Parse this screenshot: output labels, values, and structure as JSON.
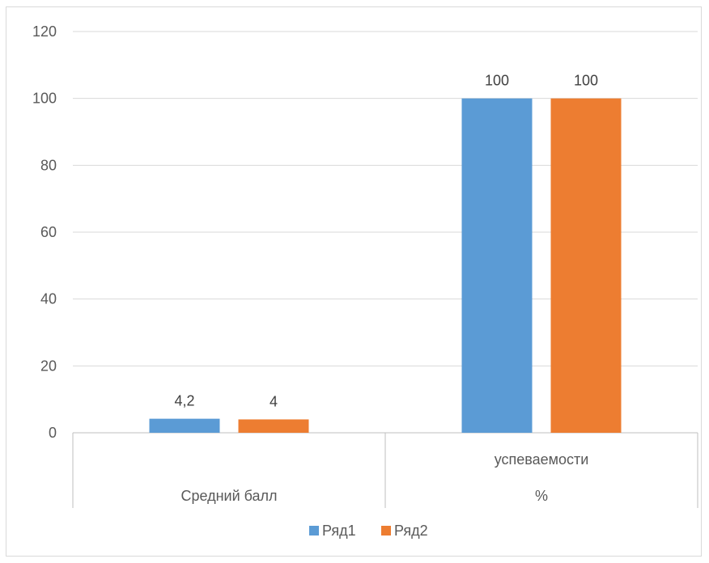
{
  "chart_data": {
    "type": "bar",
    "categories": [
      [
        "Средний балл"
      ],
      [
        "успеваемости",
        "%"
      ]
    ],
    "series": [
      {
        "name": "Ряд1",
        "values": [
          4.2,
          100
        ],
        "labels": [
          "4,2",
          "100"
        ],
        "color": "#5b9bd5"
      },
      {
        "name": "Ряд2",
        "values": [
          4,
          100
        ],
        "labels": [
          "4",
          "100"
        ],
        "color": "#ed7d31"
      }
    ],
    "ylim": [
      0,
      120
    ],
    "yticks": [
      0,
      20,
      40,
      60,
      80,
      100,
      120
    ],
    "grid": true,
    "legend_position": "bottom",
    "gridline_color": "#d9d9d9"
  }
}
